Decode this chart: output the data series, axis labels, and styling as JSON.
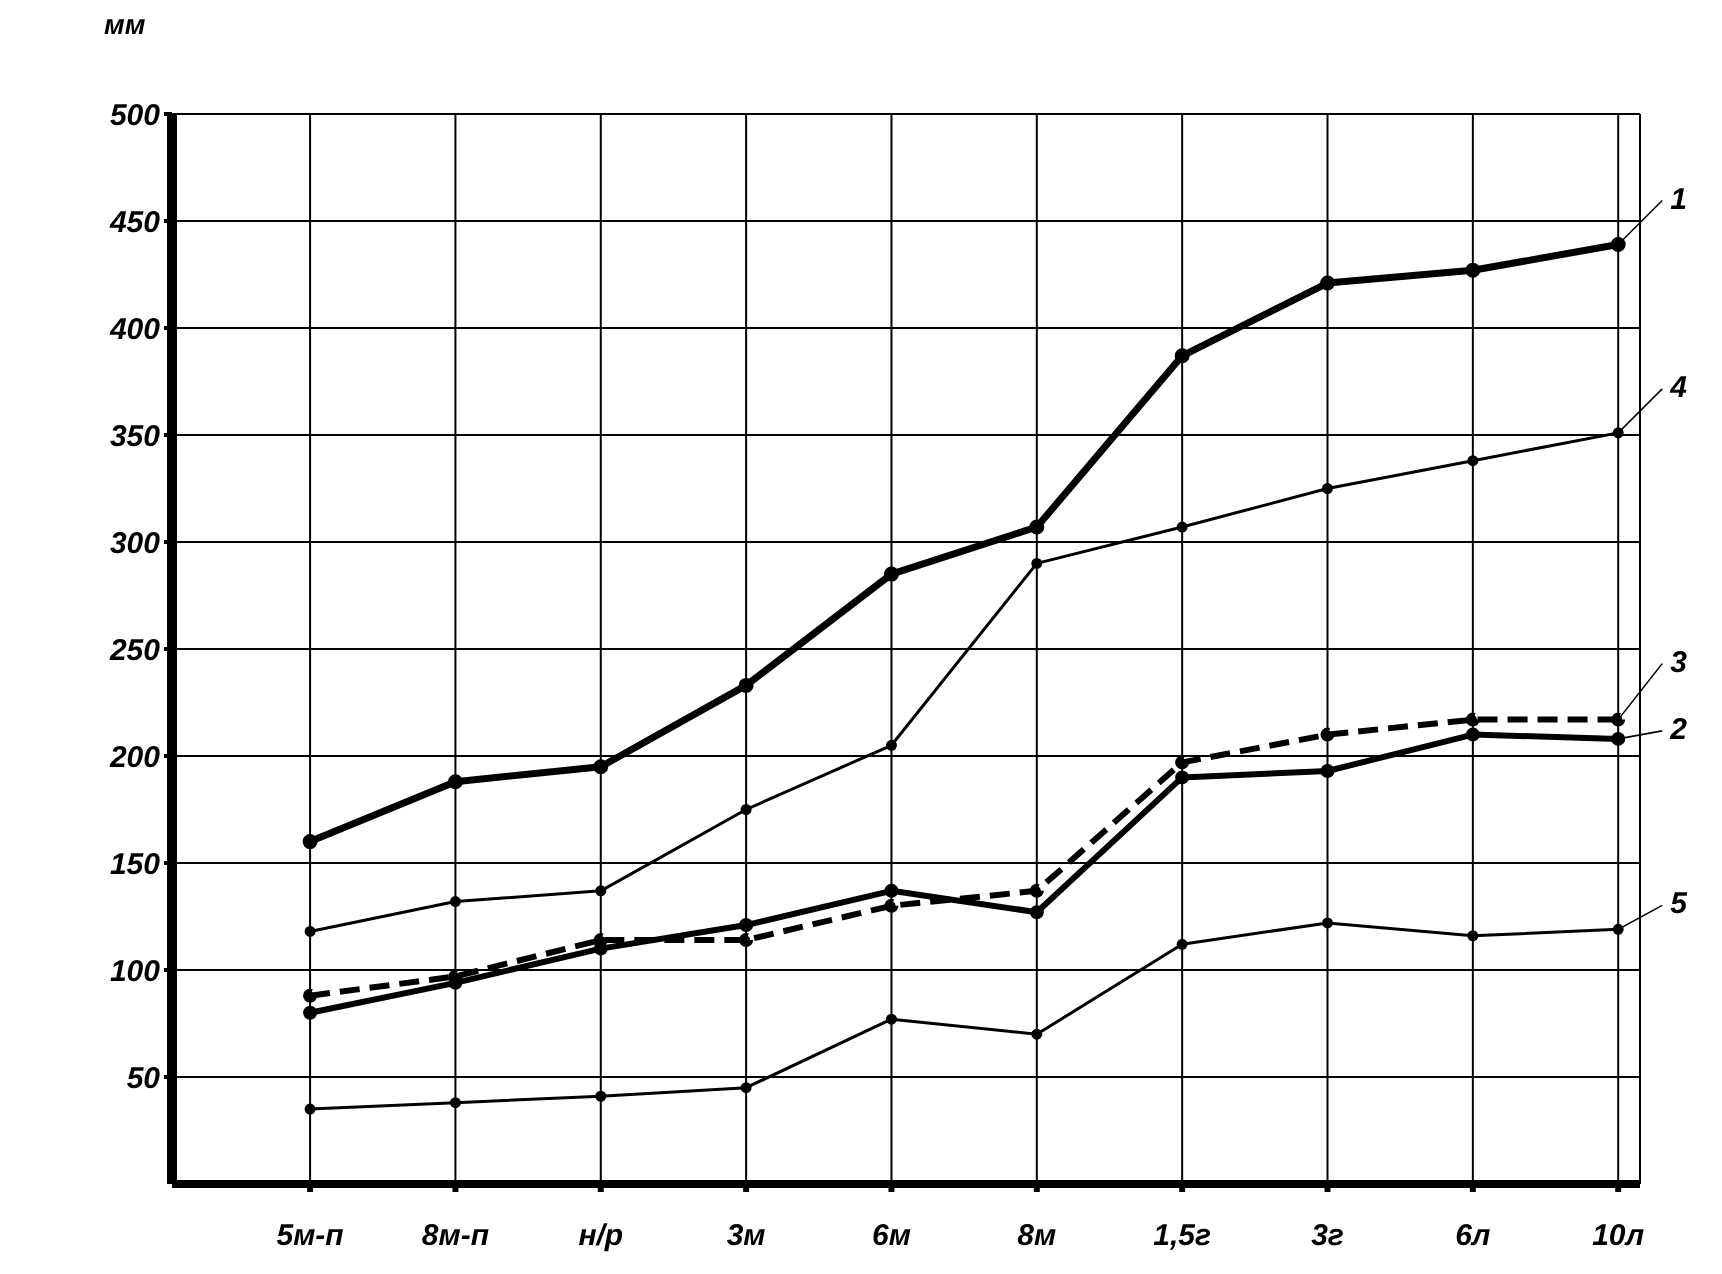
{
  "chart_data": {
    "type": "line",
    "ylabel": "мм",
    "categories": [
      "5м-п",
      "8м-п",
      "н/р",
      "3м",
      "6м",
      "8м",
      "1,5г",
      "3г",
      "6л",
      "10л"
    ],
    "series": [
      {
        "name": "1",
        "color": "#000000",
        "values": [
          160,
          188,
          195,
          233,
          285,
          307,
          387,
          421,
          427,
          439
        ]
      },
      {
        "name": "2",
        "color": "#000000",
        "values": [
          80,
          94,
          110,
          121,
          137,
          127,
          190,
          193,
          210,
          208
        ]
      },
      {
        "name": "3",
        "color": "#000000",
        "line_style": "dashed",
        "values": [
          88,
          97,
          114,
          114,
          130,
          137,
          197,
          210,
          217,
          217
        ]
      },
      {
        "name": "4",
        "color": "#000000",
        "values": [
          118,
          132,
          137,
          175,
          205,
          290,
          307,
          325,
          338,
          351
        ]
      },
      {
        "name": "5",
        "color": "#000000",
        "values": [
          35,
          38,
          41,
          45,
          77,
          70,
          112,
          122,
          116,
          119
        ]
      }
    ],
    "ylim": [
      0,
      500
    ],
    "yticks": [
      50,
      100,
      150,
      200,
      250,
      300,
      350,
      400,
      450,
      500
    ],
    "grid": true,
    "legend": "right",
    "marker": "circle",
    "line_style": "solid"
  }
}
